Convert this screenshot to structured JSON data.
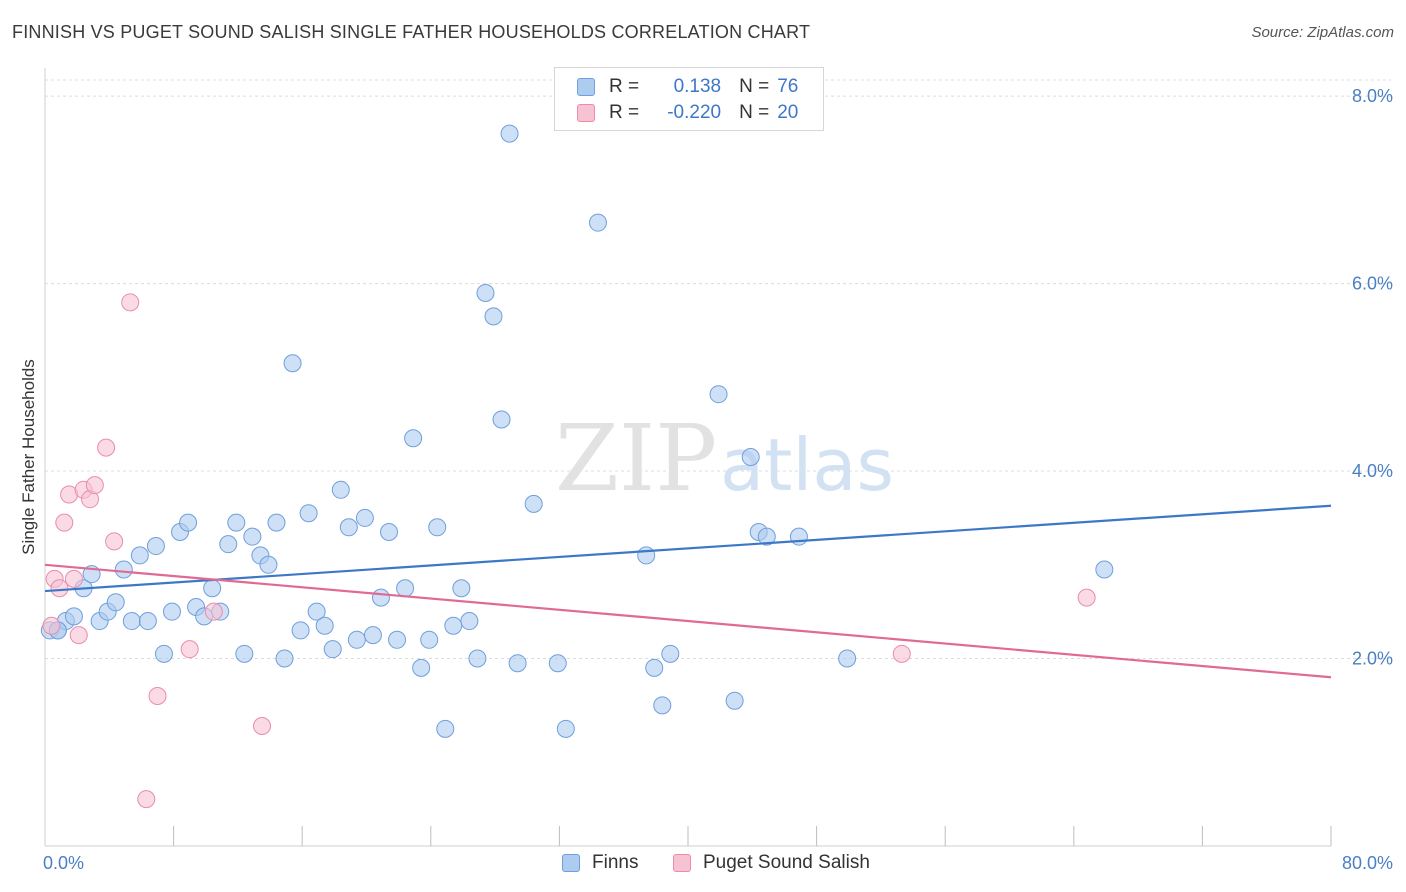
{
  "title": "FINNISH VS PUGET SOUND SALISH SINGLE FATHER HOUSEHOLDS CORRELATION CHART",
  "source": "Source: ZipAtlas.com",
  "watermark": {
    "zip": "ZIP",
    "atlas": "atlas"
  },
  "legend": {
    "rows": [
      {
        "r_label": "R =",
        "r_value": "0.138",
        "n_label": "N =",
        "n_value": "76"
      },
      {
        "r_label": "R =",
        "r_value": "-0.220",
        "n_label": "N =",
        "n_value": "20"
      }
    ]
  },
  "colors": {
    "finns_fill": "#aecbf0",
    "finns_stroke": "#6f9fdc",
    "finns_line": "#3d78c8",
    "salish_fill": "#f7c3d3",
    "salish_stroke": "#ea8cab",
    "salish_line": "#e06a93",
    "grid": "#dcdcdc",
    "tick_text": "#4a7fc4"
  },
  "chart_data": {
    "type": "scatter",
    "xlabel": "",
    "ylabel": "Single Father Households",
    "xlim": [
      0,
      80
    ],
    "ylim": [
      0,
      8.3
    ],
    "x_tick_labels": [
      "0.0%",
      "80.0%"
    ],
    "y_ticks": [
      2,
      4,
      6,
      8
    ],
    "y_tick_labels": [
      "2.0%",
      "4.0%",
      "6.0%",
      "8.0%"
    ],
    "grid": true,
    "legend_position": "bottom",
    "series": [
      {
        "name": "Finns",
        "trend": {
          "x": [
            0,
            80
          ],
          "y": [
            2.72,
            3.63
          ]
        },
        "points": [
          [
            0.3,
            2.3
          ],
          [
            0.8,
            2.3
          ],
          [
            1.3,
            2.4
          ],
          [
            1.8,
            2.45
          ],
          [
            2.4,
            2.75
          ],
          [
            2.9,
            2.9
          ],
          [
            3.4,
            2.4
          ],
          [
            3.9,
            2.5
          ],
          [
            4.4,
            2.6
          ],
          [
            4.9,
            2.95
          ],
          [
            5.4,
            2.4
          ],
          [
            5.9,
            3.1
          ],
          [
            6.4,
            2.4
          ],
          [
            6.9,
            3.2
          ],
          [
            7.4,
            2.05
          ],
          [
            7.9,
            2.5
          ],
          [
            8.4,
            3.35
          ],
          [
            8.9,
            3.45
          ],
          [
            9.4,
            2.55
          ],
          [
            9.9,
            2.45
          ],
          [
            10.4,
            2.75
          ],
          [
            10.9,
            2.5
          ],
          [
            11.4,
            3.22
          ],
          [
            11.9,
            3.45
          ],
          [
            12.4,
            2.05
          ],
          [
            12.9,
            3.3
          ],
          [
            13.4,
            3.1
          ],
          [
            13.9,
            3.0
          ],
          [
            14.4,
            3.45
          ],
          [
            14.9,
            2.0
          ],
          [
            15.4,
            5.15
          ],
          [
            15.9,
            2.3
          ],
          [
            16.4,
            3.55
          ],
          [
            16.9,
            2.5
          ],
          [
            17.4,
            2.35
          ],
          [
            17.9,
            2.1
          ],
          [
            18.4,
            3.8
          ],
          [
            18.9,
            3.4
          ],
          [
            19.4,
            2.2
          ],
          [
            19.9,
            3.5
          ],
          [
            20.4,
            2.25
          ],
          [
            20.9,
            2.65
          ],
          [
            21.4,
            3.35
          ],
          [
            21.9,
            2.2
          ],
          [
            22.4,
            2.75
          ],
          [
            22.9,
            4.35
          ],
          [
            23.4,
            1.9
          ],
          [
            23.9,
            2.2
          ],
          [
            24.4,
            3.4
          ],
          [
            24.9,
            1.25
          ],
          [
            25.4,
            2.35
          ],
          [
            25.9,
            2.75
          ],
          [
            26.4,
            2.4
          ],
          [
            26.9,
            2.0
          ],
          [
            27.4,
            5.9
          ],
          [
            27.9,
            5.65
          ],
          [
            28.4,
            4.55
          ],
          [
            28.9,
            7.6
          ],
          [
            29.4,
            1.95
          ],
          [
            30.4,
            3.65
          ],
          [
            31.9,
            1.95
          ],
          [
            32.4,
            1.25
          ],
          [
            34.4,
            6.65
          ],
          [
            37.4,
            3.1
          ],
          [
            37.9,
            1.9
          ],
          [
            38.4,
            1.5
          ],
          [
            38.9,
            2.05
          ],
          [
            41.9,
            4.82
          ],
          [
            42.9,
            1.55
          ],
          [
            43.9,
            4.15
          ],
          [
            44.4,
            3.35
          ],
          [
            44.9,
            3.3
          ],
          [
            46.9,
            3.3
          ],
          [
            49.9,
            2.0
          ],
          [
            65.9,
            2.95
          ],
          [
            0.8,
            2.3
          ]
        ]
      },
      {
        "name": "Puget Sound Salish",
        "trend": {
          "x": [
            0,
            80
          ],
          "y": [
            3.0,
            1.8
          ]
        },
        "points": [
          [
            0.4,
            2.35
          ],
          [
            0.6,
            2.85
          ],
          [
            0.9,
            2.75
          ],
          [
            1.2,
            3.45
          ],
          [
            1.5,
            3.75
          ],
          [
            1.8,
            2.85
          ],
          [
            2.1,
            2.25
          ],
          [
            2.4,
            3.8
          ],
          [
            2.8,
            3.7
          ],
          [
            3.1,
            3.85
          ],
          [
            3.8,
            4.25
          ],
          [
            4.3,
            3.25
          ],
          [
            5.3,
            5.8
          ],
          [
            6.3,
            0.5
          ],
          [
            7.0,
            1.6
          ],
          [
            9.0,
            2.1
          ],
          [
            10.5,
            2.5
          ],
          [
            13.5,
            1.28
          ],
          [
            64.8,
            2.65
          ],
          [
            53.3,
            2.05
          ]
        ]
      }
    ]
  }
}
